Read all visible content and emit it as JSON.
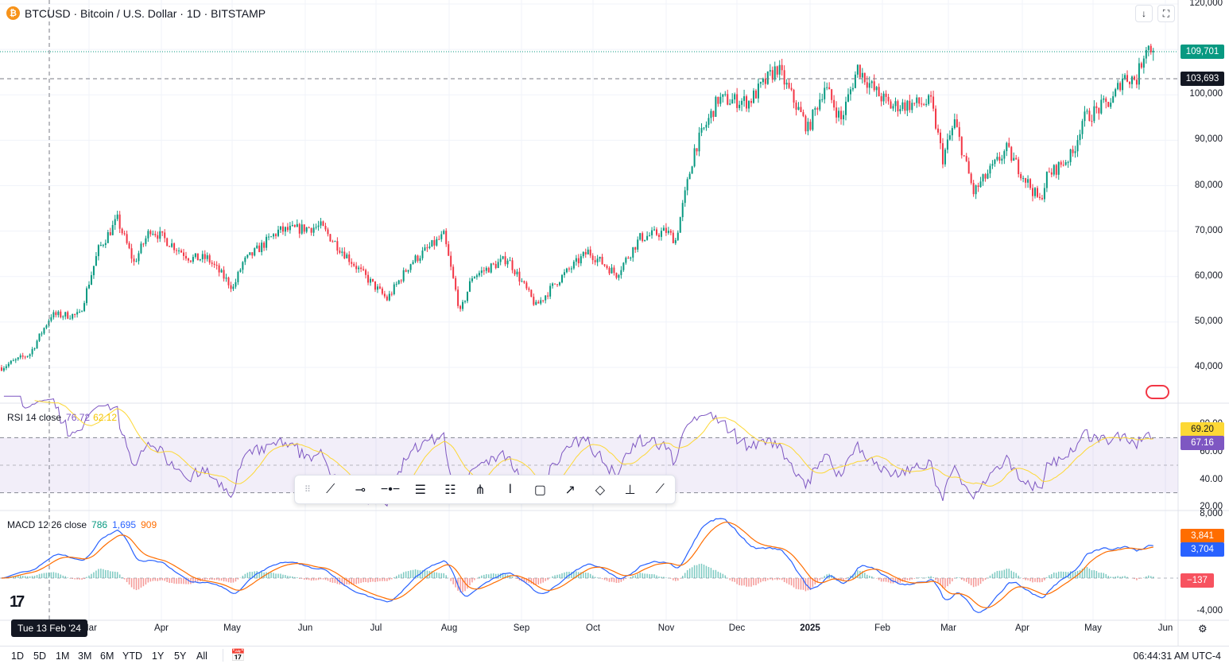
{
  "header": {
    "symbol": "BTCUSD",
    "title": "BTCUSD · Bitcoin / U.S. Dollar · 1D · BITSTAMP",
    "coin_icon": "bitcoin-icon"
  },
  "price_axis": {
    "ticks": [
      "120,000",
      "100,000",
      "90,000",
      "80,000",
      "70,000",
      "60,000",
      "50,000",
      "40,000"
    ]
  },
  "price_labels": {
    "last": "109,701",
    "crosshair": "103,693"
  },
  "rsi": {
    "label": "RSI 14 close",
    "value": "76.72",
    "ma": "62.12",
    "ticks": [
      "80.00",
      "60.00",
      "40.00",
      "20.00"
    ],
    "axis_value_ma": "69.20",
    "axis_value_rsi": "67.16"
  },
  "macd": {
    "label": "MACD 12 26 close",
    "hist": "786",
    "macd": "1,695",
    "signal": "909",
    "ticks": [
      "8,000",
      "-4,000"
    ],
    "axis_signal": "3,841",
    "axis_macd": "3,704",
    "axis_hist": "−137"
  },
  "time_axis": {
    "labels": [
      "Mar",
      "Apr",
      "May",
      "Jun",
      "Jul",
      "Aug",
      "Sep",
      "Oct",
      "Nov",
      "Dec",
      "2025",
      "Feb",
      "Mar",
      "Apr",
      "May",
      "Jun"
    ],
    "crosshair_date": "Tue 13 Feb '24"
  },
  "ranges": [
    "1D",
    "5D",
    "1M",
    "3M",
    "6M",
    "YTD",
    "1Y",
    "5Y",
    "All"
  ],
  "clock": "06:44:31 AM UTC-4",
  "colors": {
    "up": "#089981",
    "down": "#f23645",
    "rsi": "#7e57c2",
    "rsi_ma": "#fdd835",
    "macd": "#2962ff",
    "signal": "#ff6d00"
  },
  "chart_data": {
    "type": "candlestick",
    "ylim": [
      40000,
      120000
    ],
    "anchors": [
      [
        "2024-01-24",
        40000
      ],
      [
        "2024-02-05",
        43000
      ],
      [
        "2024-02-14",
        51500
      ],
      [
        "2024-02-26",
        51500
      ],
      [
        "2024-03-05",
        66000
      ],
      [
        "2024-03-13",
        72500
      ],
      [
        "2024-03-20",
        63000
      ],
      [
        "2024-03-27",
        70500
      ],
      [
        "2024-04-13",
        64000
      ],
      [
        "2024-04-20",
        64000
      ],
      [
        "2024-05-01",
        57500
      ],
      [
        "2024-05-05",
        63000
      ],
      [
        "2024-05-20",
        70000
      ],
      [
        "2024-06-07",
        71000
      ],
      [
        "2024-06-24",
        61000
      ],
      [
        "2024-07-05",
        55000
      ],
      [
        "2024-07-15",
        63000
      ],
      [
        "2024-07-29",
        69000
      ],
      [
        "2024-08-05",
        52000
      ],
      [
        "2024-08-10",
        60000
      ],
      [
        "2024-08-25",
        64000
      ],
      [
        "2024-09-06",
        53500
      ],
      [
        "2024-09-15",
        59000
      ],
      [
        "2024-09-28",
        65500
      ],
      [
        "2024-10-10",
        60500
      ],
      [
        "2024-10-20",
        68500
      ],
      [
        "2024-10-31",
        70000
      ],
      [
        "2024-11-04",
        68000
      ],
      [
        "2024-11-12",
        88000
      ],
      [
        "2024-11-22",
        99000
      ],
      [
        "2024-12-05",
        98500
      ],
      [
        "2024-12-17",
        106000
      ],
      [
        "2024-12-30",
        92500
      ],
      [
        "2025-01-06",
        102000
      ],
      [
        "2025-01-13",
        94500
      ],
      [
        "2025-01-20",
        106000
      ],
      [
        "2025-01-27",
        101000
      ],
      [
        "2025-02-03",
        97500
      ],
      [
        "2025-02-20",
        98300
      ],
      [
        "2025-02-25",
        86000
      ],
      [
        "2025-03-02",
        94000
      ],
      [
        "2025-03-10",
        78500
      ],
      [
        "2025-03-24",
        88000
      ],
      [
        "2025-04-07",
        76500
      ],
      [
        "2025-04-10",
        82000
      ],
      [
        "2025-04-21",
        87000
      ],
      [
        "2025-04-25",
        94500
      ],
      [
        "2025-05-08",
        99000
      ],
      [
        "2025-05-12",
        104000
      ],
      [
        "2025-05-18",
        103500
      ],
      [
        "2025-05-22",
        111000
      ],
      [
        "2025-05-25",
        109701
      ]
    ]
  },
  "toolbar_tools": [
    "drag-handle-icon",
    "trend-line-icon",
    "horizontal-ray-icon",
    "horizontal-line-icon",
    "parallel-channel-icon",
    "fib-retracement-icon",
    "pitchfork-icon",
    "vertical-line-icon",
    "rectangle-icon",
    "arrow-icon",
    "path-icon",
    "price-range-icon",
    "ray-icon"
  ]
}
